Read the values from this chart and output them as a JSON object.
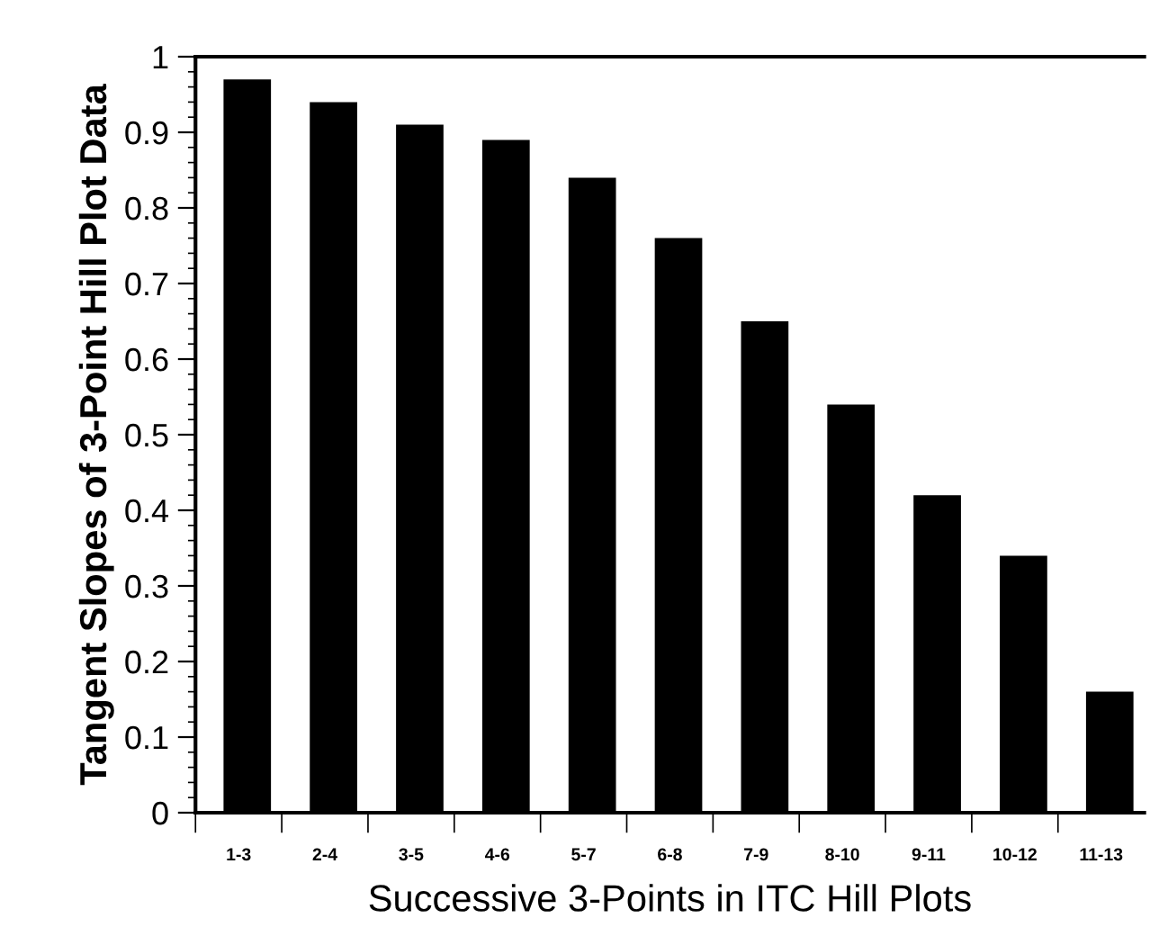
{
  "chart_data": {
    "type": "bar",
    "xlabel": "Successive 3-Points in ITC Hill Plots",
    "ylabel": "Tangent Slopes of 3-Point Hill Plot Data",
    "categories": [
      "1-3",
      "2-4",
      "3-5",
      "4-6",
      "5-7",
      "6-8",
      "7-9",
      "8-10",
      "9-11",
      "10-12",
      "11-13"
    ],
    "values": [
      0.97,
      0.94,
      0.91,
      0.89,
      0.84,
      0.76,
      0.65,
      0.54,
      0.42,
      0.34,
      0.16
    ],
    "color": "#000000",
    "ylim": [
      0,
      1
    ],
    "yticks": [
      0,
      0.1,
      0.2,
      0.3,
      0.4,
      0.5,
      0.6,
      0.7,
      0.8,
      0.9,
      1
    ],
    "grid": false
  }
}
